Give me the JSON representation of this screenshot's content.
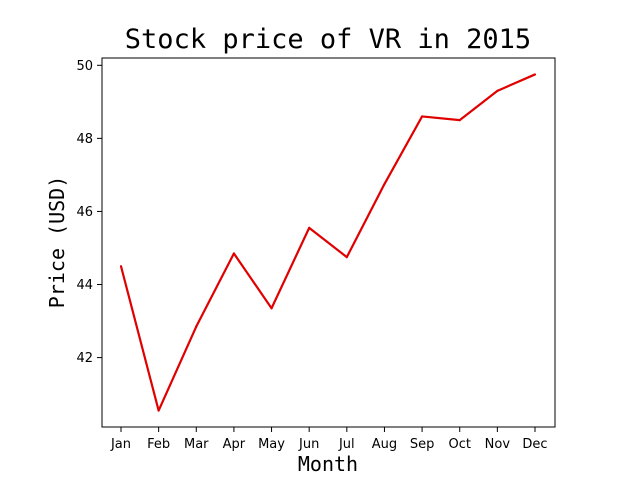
{
  "chart_data": {
    "type": "line",
    "title": "Stock price of VR in 2015",
    "xlabel": "Month",
    "ylabel": "Price (USD)",
    "categories": [
      "Jan",
      "Feb",
      "Mar",
      "Apr",
      "May",
      "Jun",
      "Jul",
      "Aug",
      "Sep",
      "Oct",
      "Nov",
      "Dec"
    ],
    "series": [
      {
        "color": "#e00000",
        "values": [
          44.5,
          40.55,
          42.85,
          44.85,
          43.35,
          45.55,
          44.75,
          46.75,
          48.6,
          48.5,
          49.3,
          49.75
        ]
      }
    ],
    "yticks": [
      42,
      44,
      46,
      48,
      50
    ],
    "ylim": [
      40.1,
      50.2
    ],
    "grid": false,
    "legend": "none"
  }
}
